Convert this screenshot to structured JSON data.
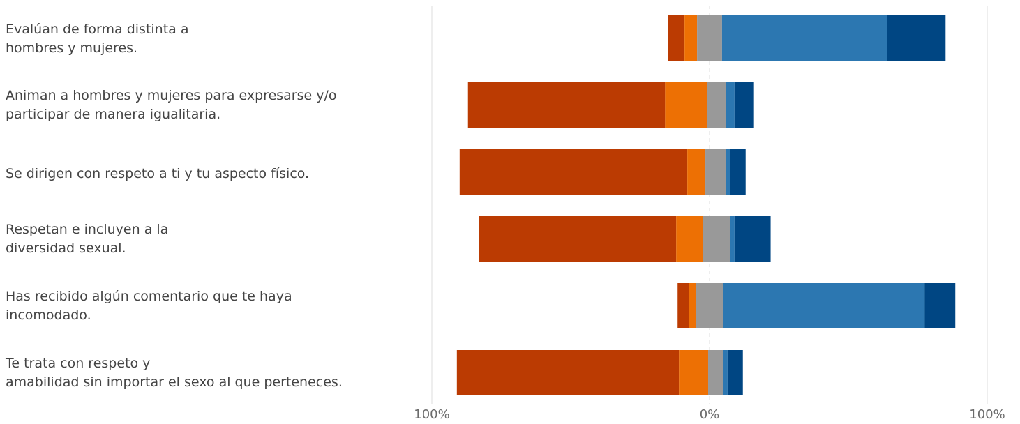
{
  "chart_data": {
    "type": "bar",
    "orientation": "horizontal",
    "stacked": "diverging",
    "title": "",
    "xlabel": "",
    "ylabel": "",
    "xlim": [
      -100,
      100
    ],
    "x_ticks": [
      "100%",
      "0%",
      "100%"
    ],
    "grid": true,
    "legend": "none",
    "categories": [
      "Evalúan de forma distinta a\nhombres y mujeres.",
      "Animan a hombres y mujeres para expresarse y/o\nparticipar de manera igualitaria.",
      "Se dirigen con respeto a ti y tu aspecto físico.",
      "Respetan e incluyen a la\ndiversidad sexual.",
      "Has recibido algún comentario que te haya\nincomodado.",
      "Te trata con respeto y\namabilidad sin importar el sexo al que perteneces."
    ],
    "series": [
      {
        "color": "#bb3b02",
        "values": [
          6,
          71,
          82,
          71,
          4,
          80
        ]
      },
      {
        "color": "#ed7004",
        "values": [
          4.5,
          15,
          6.5,
          9.5,
          2.5,
          10.5
        ]
      },
      {
        "color": "#999999",
        "values": [
          9,
          7,
          7.5,
          10,
          10,
          5.5
        ]
      },
      {
        "color": "#2c77b1",
        "values": [
          59.5,
          3,
          1.5,
          1.5,
          72.5,
          1.5
        ]
      },
      {
        "color": "#004683",
        "values": [
          21,
          7,
          5.5,
          13,
          11,
          5.5
        ]
      }
    ],
    "offsets": [
      -15,
      -87,
      -90,
      -83,
      -11.5,
      -91
    ]
  }
}
